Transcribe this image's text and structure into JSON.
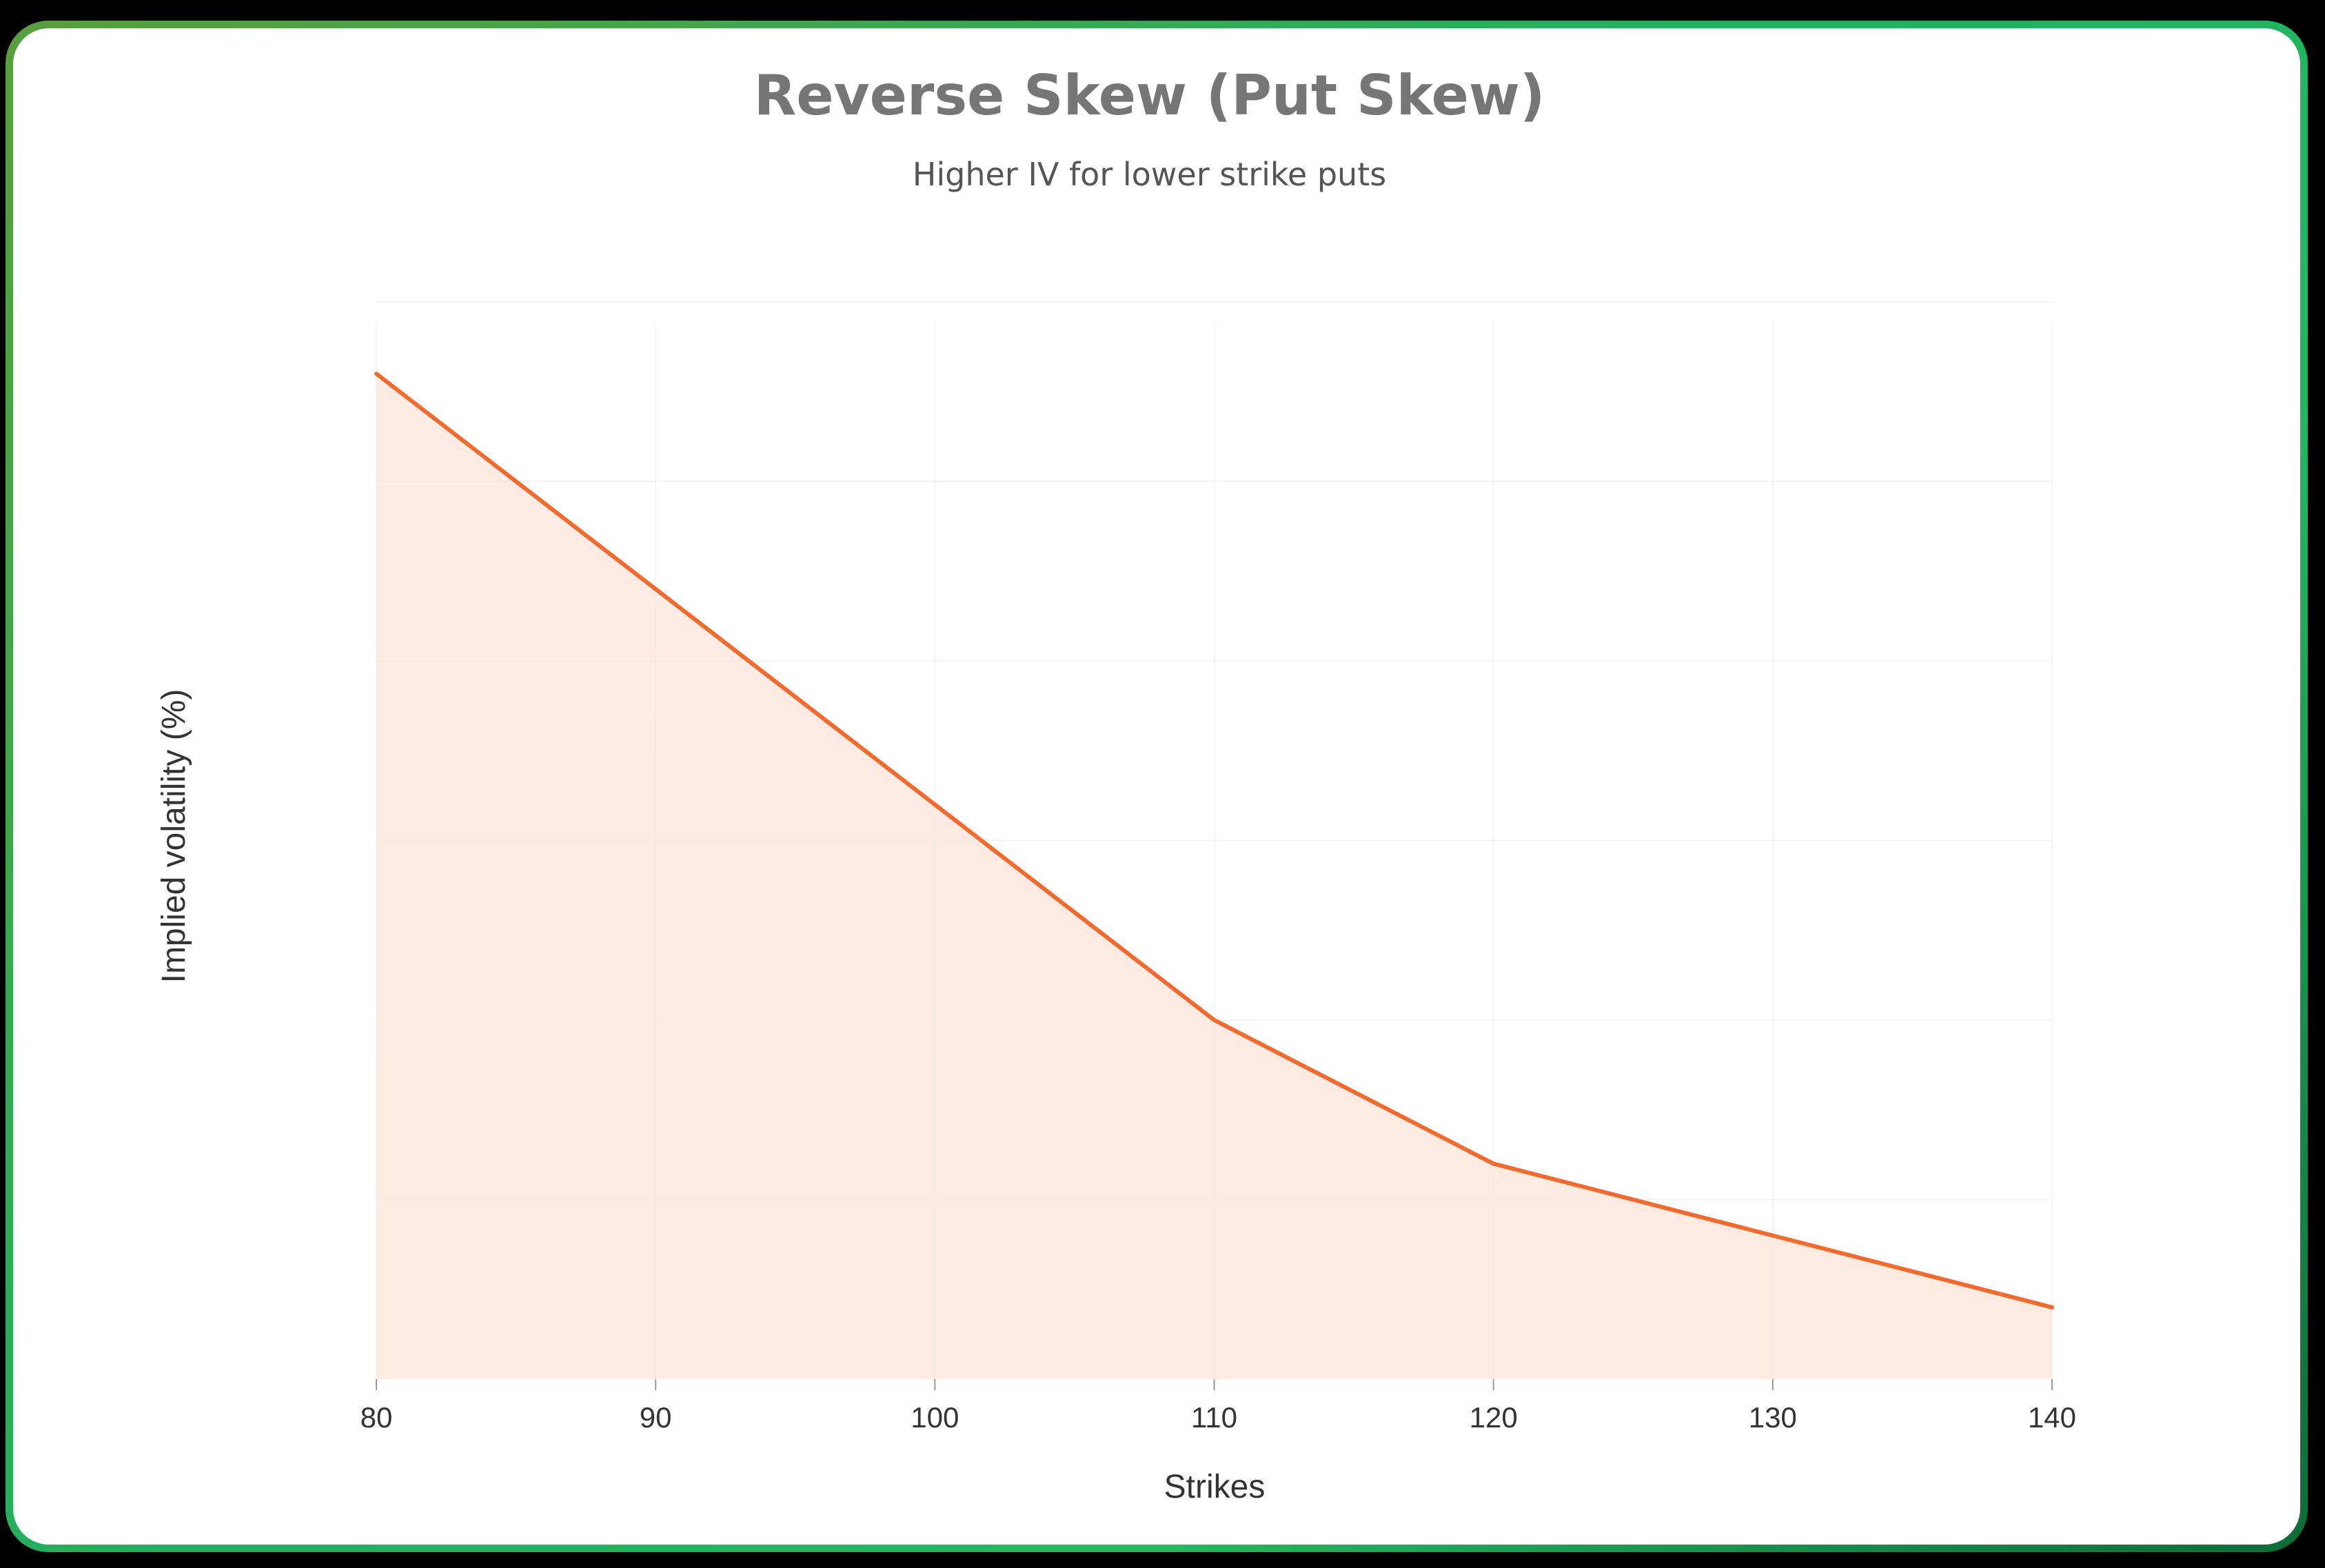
{
  "header": {
    "title": "Reverse Skew (Put Skew)",
    "subtitle": "Higher IV for lower strike puts"
  },
  "colors": {
    "line": "#f26a2e",
    "fill": "#fdebe3",
    "grid": "#ece6e3",
    "text": "#333333",
    "title": "#767676",
    "frame_gradient": [
      "#5a9e3f",
      "#1fb060",
      "#0f6b38"
    ]
  },
  "chart_data": {
    "type": "area",
    "title": "Reverse Skew (Put Skew)",
    "subtitle": "Higher IV for lower strike puts",
    "xlabel": "Strikes",
    "ylabel": "Implied volatility (%)",
    "x": [
      80,
      90,
      100,
      110,
      120,
      130,
      140
    ],
    "categories": [
      "80",
      "90",
      "100",
      "110",
      "120",
      "130",
      "140"
    ],
    "series": [
      {
        "name": "Implied volatility",
        "values": [
          38,
          32,
          26,
          20,
          16,
          14,
          12
        ]
      }
    ],
    "xlim": [
      80,
      140
    ],
    "ylim": [
      10,
      40
    ],
    "y_tick_labels_visible": false,
    "grid": true,
    "legend": "none"
  },
  "axes": {
    "x_label": "Strikes",
    "y_label": "Implied volatility (%)",
    "x_ticks": [
      "80",
      "90",
      "100",
      "110",
      "120",
      "130",
      "140"
    ]
  }
}
